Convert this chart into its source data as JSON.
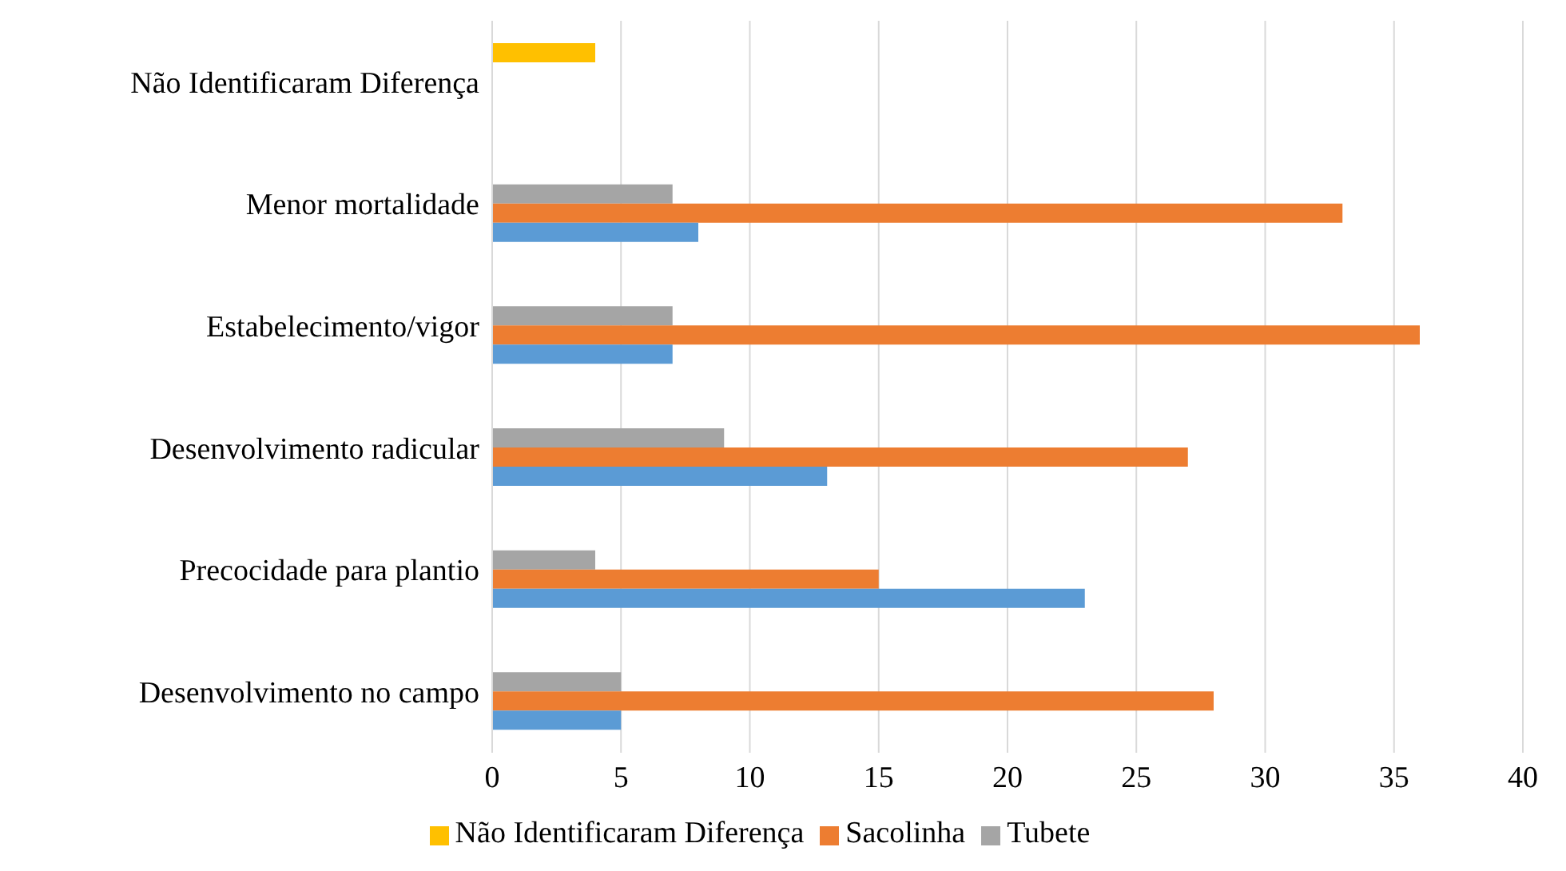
{
  "chart_data": {
    "type": "bar",
    "orientation": "horizontal",
    "categories": [
      "Não Identificaram Diferença",
      "Menor mortalidade",
      "Estabelecimento/vigor",
      "Desenvolvimento radicular",
      "Precocidade para plantio",
      "Desenvolvimento no campo"
    ],
    "series": [
      {
        "name": "Não Identificaram Diferença",
        "color": "#ffc000",
        "values": [
          4,
          null,
          null,
          null,
          null,
          null
        ]
      },
      {
        "name": "Tubete",
        "color": "#a5a5a5",
        "values": [
          null,
          7,
          7,
          9,
          4,
          5
        ]
      },
      {
        "name": "Sacolinha",
        "color": "#ed7d31",
        "values": [
          null,
          33,
          36,
          27,
          15,
          28
        ]
      },
      {
        "color": "#5b9bd5",
        "values": [
          null,
          8,
          7,
          13,
          23,
          5
        ]
      }
    ],
    "xlim": [
      0,
      40
    ],
    "xticks": [
      0,
      5,
      10,
      15,
      20,
      25,
      30,
      35,
      40
    ],
    "grid": "x",
    "legend": "bottom"
  }
}
